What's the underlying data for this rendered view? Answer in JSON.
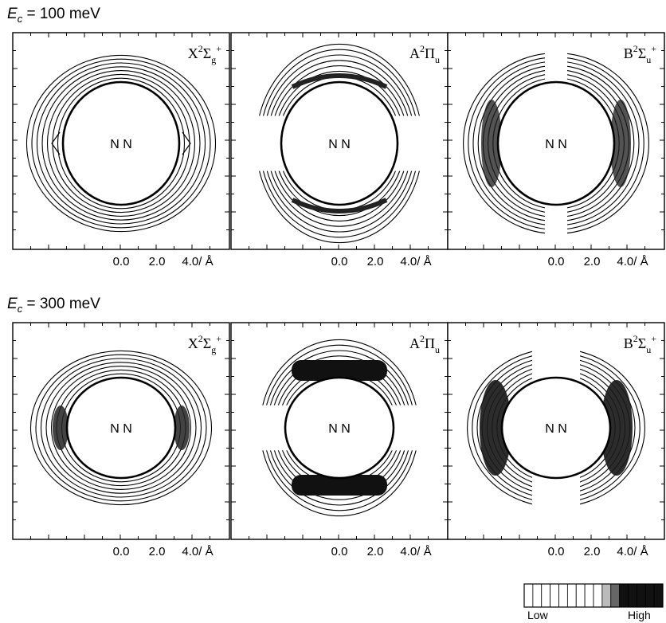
{
  "rows": [
    {
      "label_var": "E",
      "label_sub": "c",
      "label_rest": " = 100 meV",
      "panels": [
        {
          "state_letter": "X",
          "sup": "2",
          "sym": "Σ",
          "sub": "g",
          "sup2": "+",
          "atoms": "N N",
          "axis_ticks": [
            "0.0",
            "2.0",
            "4.0/ Å"
          ]
        },
        {
          "state_letter": "A",
          "sup": "2",
          "sym": "Π",
          "sub": "u",
          "sup2": "",
          "atoms": "N N",
          "axis_ticks": [
            "0.0",
            "2.0",
            "4.0/ Å"
          ]
        },
        {
          "state_letter": "B",
          "sup": "2",
          "sym": "Σ",
          "sub": "u",
          "sup2": "+",
          "atoms": "N N",
          "axis_ticks": [
            "0.0",
            "2.0",
            "4.0/ Å"
          ]
        }
      ]
    },
    {
      "label_var": "E",
      "label_sub": "c",
      "label_rest": " = 300 meV",
      "panels": [
        {
          "state_letter": "X",
          "sup": "2",
          "sym": "Σ",
          "sub": "g",
          "sup2": "+",
          "atoms": "N N",
          "axis_ticks": [
            "0.0",
            "2.0",
            "4.0/ Å"
          ]
        },
        {
          "state_letter": "A",
          "sup": "2",
          "sym": "Π",
          "sub": "u",
          "sup2": "",
          "atoms": "N N",
          "axis_ticks": [
            "0.0",
            "2.0",
            "4.0/ Å"
          ]
        },
        {
          "state_letter": "B",
          "sup": "2",
          "sym": "Σ",
          "sub": "u",
          "sup2": "+",
          "atoms": "N N",
          "axis_ticks": [
            "0.0",
            "2.0",
            "4.0/ Å"
          ]
        }
      ]
    }
  ],
  "scale": {
    "low": "Low",
    "high": "High"
  }
}
